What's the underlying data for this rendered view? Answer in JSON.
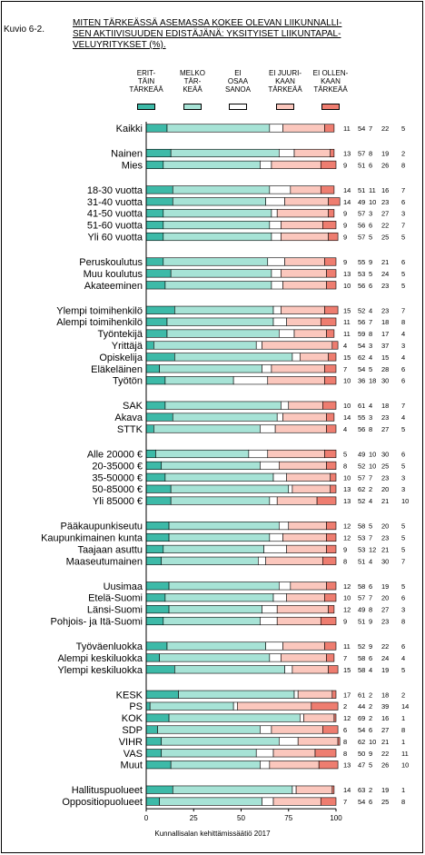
{
  "figure_label": "Kuvio 6-2.",
  "title_lines": [
    "MITEN TÄRKEÄSSÄ ASEMASSA KOKEE OLEVAN LIIKUNNALLI-",
    "SEN AKTIIVISUUDEN EDISTÄJÄNÄ: YKSITYISET LIIKUNTAPAL-",
    "VELUYRITYKSET (%)."
  ],
  "footer": "Kunnallisalan kehittämissäätiö 2017",
  "chart_data": {
    "type": "bar",
    "orientation": "horizontal",
    "stacked": true,
    "xlim": [
      0,
      100
    ],
    "xticks": [
      "0",
      "25",
      "50",
      "75",
      "100"
    ],
    "series": [
      {
        "name": "ERIT-TÄIN TÄRKEÄÄ",
        "lines": [
          "ERIT-",
          "TÄIN",
          "TÄRKEÄÄ"
        ],
        "color": "#3dbaa8"
      },
      {
        "name": "MELKO TÄR-KEÄÄ",
        "lines": [
          "MELKO",
          "TÄR-",
          "KEÄÄ"
        ],
        "color": "#a7e3d6"
      },
      {
        "name": "EI OSAA SANOA",
        "lines": [
          "EI",
          "OSAA",
          "SANOA"
        ],
        "color": "#ffffff"
      },
      {
        "name": "EI JUURI-KAAN TÄRKEÄÄ",
        "lines": [
          "EI JUURI-",
          "KAAN",
          "TÄRKEÄÄ"
        ],
        "color": "#fbc7bd"
      },
      {
        "name": "EI OLLEN-KAAN TÄRKEÄÄ",
        "lines": [
          "EI OLLEN-",
          "KAAN",
          "TÄRKEÄÄ"
        ],
        "color": "#ee7d70"
      }
    ],
    "groups": [
      [
        {
          "label": "Kaikki",
          "values": [
            11,
            54,
            7,
            22,
            5
          ]
        }
      ],
      [
        {
          "label": "Nainen",
          "values": [
            13,
            57,
            8,
            19,
            2
          ]
        },
        {
          "label": "Mies",
          "values": [
            9,
            51,
            6,
            26,
            8
          ]
        }
      ],
      [
        {
          "label": "18-30 vuotta",
          "values": [
            14,
            51,
            11,
            16,
            7
          ]
        },
        {
          "label": "31-40 vuotta",
          "values": [
            14,
            49,
            10,
            23,
            6
          ]
        },
        {
          "label": "41-50 vuotta",
          "values": [
            9,
            57,
            3,
            27,
            3
          ]
        },
        {
          "label": "51-60 vuotta",
          "values": [
            9,
            56,
            6,
            22,
            7
          ]
        },
        {
          "label": "Yli 60 vuotta",
          "values": [
            9,
            57,
            5,
            25,
            5
          ]
        }
      ],
      [
        {
          "label": "Peruskoulutus",
          "values": [
            9,
            55,
            9,
            21,
            6
          ]
        },
        {
          "label": "Muu koulutus",
          "values": [
            13,
            53,
            5,
            24,
            5
          ]
        },
        {
          "label": "Akateeminen",
          "values": [
            10,
            56,
            6,
            23,
            5
          ]
        }
      ],
      [
        {
          "label": "Ylempi toimihenkilö",
          "values": [
            15,
            52,
            4,
            23,
            7
          ]
        },
        {
          "label": "Alempi toimihenkilö",
          "values": [
            11,
            56,
            7,
            18,
            8
          ]
        },
        {
          "label": "Työntekijä",
          "values": [
            11,
            59,
            8,
            17,
            4
          ]
        },
        {
          "label": "Yrittäjä",
          "values": [
            4,
            54,
            3,
            37,
            3
          ]
        },
        {
          "label": "Opiskelija",
          "values": [
            15,
            62,
            4,
            15,
            4
          ]
        },
        {
          "label": "Eläkeläinen",
          "values": [
            7,
            54,
            5,
            28,
            6
          ]
        },
        {
          "label": "Työtön",
          "values": [
            10,
            36,
            18,
            30,
            6
          ]
        }
      ],
      [
        {
          "label": "SAK",
          "values": [
            10,
            61,
            4,
            18,
            7
          ]
        },
        {
          "label": "Akava",
          "values": [
            14,
            55,
            3,
            23,
            4
          ]
        },
        {
          "label": "STTK",
          "values": [
            4,
            56,
            8,
            27,
            5
          ]
        }
      ],
      [
        {
          "label": "Alle 20000 €",
          "values": [
            5,
            49,
            10,
            30,
            6
          ]
        },
        {
          "label": "20-35000 €",
          "values": [
            8,
            52,
            10,
            25,
            5
          ]
        },
        {
          "label": "35-50000 €",
          "values": [
            10,
            57,
            7,
            23,
            3
          ]
        },
        {
          "label": "50-85000 €",
          "values": [
            13,
            62,
            2,
            20,
            3
          ]
        },
        {
          "label": "Yli 85000 €",
          "values": [
            13,
            52,
            4,
            21,
            10
          ]
        }
      ],
      [
        {
          "label": "Pääkaupunkiseutu",
          "values": [
            12,
            58,
            5,
            20,
            5
          ]
        },
        {
          "label": "Kaupunkimainen kunta",
          "values": [
            12,
            53,
            7,
            23,
            5
          ]
        },
        {
          "label": "Taajaan asuttu",
          "values": [
            9,
            53,
            12,
            21,
            5
          ]
        },
        {
          "label": "Maaseutumainen",
          "values": [
            8,
            51,
            4,
            30,
            7
          ]
        }
      ],
      [
        {
          "label": "Uusimaa",
          "values": [
            12,
            58,
            6,
            19,
            5
          ]
        },
        {
          "label": "Etelä-Suomi",
          "values": [
            10,
            57,
            7,
            20,
            6
          ]
        },
        {
          "label": "Länsi-Suomi",
          "values": [
            12,
            49,
            8,
            27,
            3
          ]
        },
        {
          "label": "Pohjois- ja Itä-Suomi",
          "values": [
            9,
            51,
            9,
            23,
            8
          ]
        }
      ],
      [
        {
          "label": "Työväenluokka",
          "values": [
            11,
            52,
            9,
            22,
            6
          ]
        },
        {
          "label": "Alempi keskiluokka",
          "values": [
            7,
            58,
            6,
            24,
            4
          ]
        },
        {
          "label": "Ylempi keskiluokka",
          "values": [
            15,
            58,
            4,
            19,
            5
          ]
        }
      ],
      [
        {
          "label": "KESK",
          "values": [
            17,
            61,
            2,
            18,
            2
          ]
        },
        {
          "label": "PS",
          "values": [
            2,
            44,
            2,
            39,
            14
          ]
        },
        {
          "label": "KOK",
          "values": [
            12,
            69,
            2,
            16,
            1
          ]
        },
        {
          "label": "SDP",
          "values": [
            6,
            54,
            6,
            27,
            8
          ]
        },
        {
          "label": "VIHR",
          "values": [
            8,
            62,
            10,
            21,
            1
          ]
        },
        {
          "label": "VAS",
          "values": [
            8,
            50,
            9,
            22,
            11
          ]
        },
        {
          "label": "Muut",
          "values": [
            13,
            47,
            5,
            26,
            10
          ]
        }
      ],
      [
        {
          "label": "Hallituspuolueet",
          "values": [
            14,
            63,
            2,
            19,
            1
          ]
        },
        {
          "label": "Oppositiopuolueet",
          "values": [
            7,
            54,
            6,
            25,
            8
          ]
        }
      ]
    ]
  }
}
